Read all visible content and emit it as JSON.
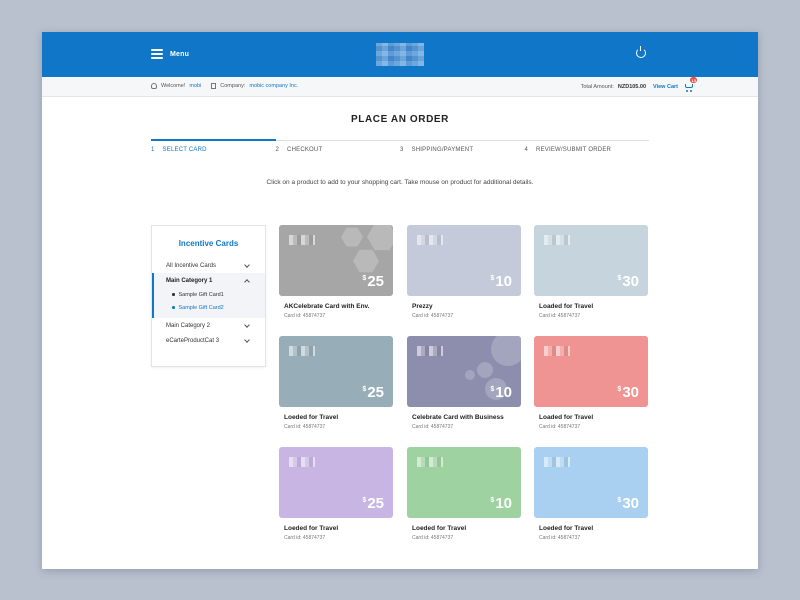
{
  "header": {
    "menu_label": "Menu",
    "logo_icon": "logo-icon",
    "power_icon": "power-icon"
  },
  "infobar": {
    "welcome_label": "Welcome!",
    "user_name": "mobi",
    "company_label": "Company:",
    "company_name": "mobic company Inc.",
    "total_label": "Total Amount:",
    "total_value": "NZD105.00",
    "view_cart": "View Cart",
    "cart_count": "13"
  },
  "page_title": "PLACE AN ORDER",
  "steps": [
    {
      "num": "1",
      "label": "SELECT CARD",
      "active": true
    },
    {
      "num": "2",
      "label": "CHECKOUT",
      "active": false
    },
    {
      "num": "3",
      "label": "SHIPPING/PAYMENT",
      "active": false
    },
    {
      "num": "4",
      "label": "REVIEW/SUBMIT ORDER",
      "active": false
    }
  ],
  "instruction": "Click on a product to add to your shopping cart. Take mouse on product for additional details.",
  "sidebar": {
    "title": "Incentive Cards",
    "all_label": "All Incentive Cards",
    "category1": "Main Category 1",
    "sub_items": [
      "Sample Gift Card1",
      "Sample Gift Card2"
    ],
    "category2": "Main Category 2",
    "category3": "eCarteProductCat 3"
  },
  "products": [
    {
      "name": "AKCelebrate Card with Env.",
      "id": "Card id: 45874737",
      "currency": "$",
      "value": "25",
      "color": "#a6a6a6"
    },
    {
      "name": "Prezzy",
      "id": "Card id: 45874737",
      "currency": "$",
      "value": "10",
      "color": "#c5cadb"
    },
    {
      "name": "Loaded for Travel",
      "id": "Card id: 45874737",
      "currency": "$",
      "value": "30",
      "color": "#c6d5dd"
    },
    {
      "name": "Loeded for Travel",
      "id": "Card id: 45874737",
      "currency": "$",
      "value": "25",
      "color": "#97adb8"
    },
    {
      "name": "Celebrate Card with Business",
      "id": "Card id: 45874737",
      "currency": "$",
      "value": "10",
      "color": "#8d8ead"
    },
    {
      "name": "Loaded for Travel",
      "id": "Card id: 45874737",
      "currency": "$",
      "value": "30",
      "color": "#ef9393"
    },
    {
      "name": "Loeded for Travel",
      "id": "Card id: 45874737",
      "currency": "$",
      "value": "25",
      "color": "#c9b5e3"
    },
    {
      "name": "Loeded for Travel",
      "id": "Card id: 45874737",
      "currency": "$",
      "value": "10",
      "color": "#9ed2a0"
    },
    {
      "name": "Loeded for Travel",
      "id": "Card id: 45874737",
      "currency": "$",
      "value": "30",
      "color": "#a9d0f0"
    }
  ]
}
